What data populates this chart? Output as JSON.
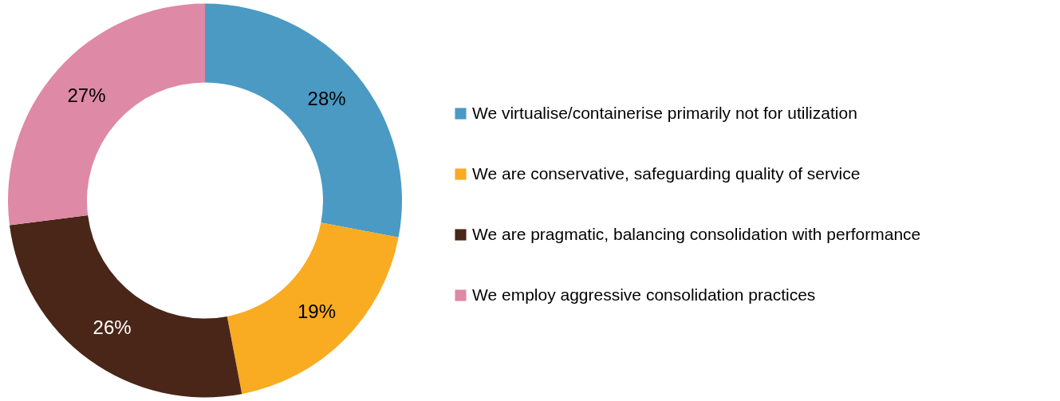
{
  "chart_data": {
    "type": "donut",
    "categories": [
      "We virtualise/containerise primarily not for utilization",
      "We are conservative, safeguarding quality of service",
      "We are pragmatic, balancing consolidation with performance",
      "We employ aggressive consolidation practices"
    ],
    "values": [
      28,
      19,
      26,
      27
    ],
    "colors": [
      "#4a9ac4",
      "#f9ab22",
      "#4a2618",
      "#de89a5"
    ],
    "value_labels": [
      "28%",
      "19%",
      "26%",
      "27%"
    ],
    "legend": "right"
  }
}
